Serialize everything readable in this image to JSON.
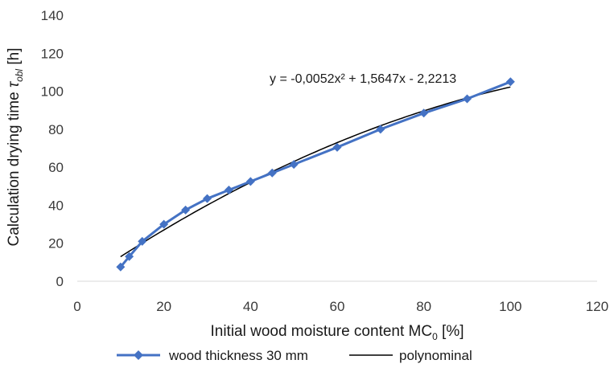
{
  "chart_data": {
    "type": "line",
    "xlabel": "Initial wood moisture content MC",
    "xlabel_sub": "0",
    "xlabel_suffix": " [%]",
    "ylabel": "Calculation drying time ",
    "ylabel_symbol": "τ",
    "ylabel_sub": "obl",
    "ylabel_suffix": " [h]",
    "xlim": [
      0,
      120
    ],
    "ylim": [
      0,
      140
    ],
    "x_ticks": [
      0,
      20,
      40,
      60,
      80,
      100,
      120
    ],
    "y_ticks": [
      0,
      20,
      40,
      60,
      80,
      100,
      120,
      140
    ],
    "grid": false,
    "legend_position": "bottom",
    "annotation": "y = -0,0052x² + 1,5647x - 2,2213",
    "colors": {
      "data_series": "#4472C4",
      "trendline": "#000000"
    },
    "series": [
      {
        "name": "wood thickness 30 mm",
        "marker": "diamond",
        "x": [
          10,
          12,
          15,
          20,
          25,
          30,
          35,
          40,
          45,
          50,
          60,
          70,
          80,
          90,
          100
        ],
        "y": [
          7.5,
          13,
          21,
          30,
          37.5,
          43.5,
          48,
          52.5,
          57,
          61.5,
          70.5,
          80,
          88.5,
          96,
          105
        ]
      },
      {
        "name": "polynominal",
        "type": "trendline",
        "coefficients": {
          "a": -0.0052,
          "b": 1.5647,
          "c": -2.2213
        },
        "x_range": [
          10,
          100
        ]
      }
    ]
  }
}
